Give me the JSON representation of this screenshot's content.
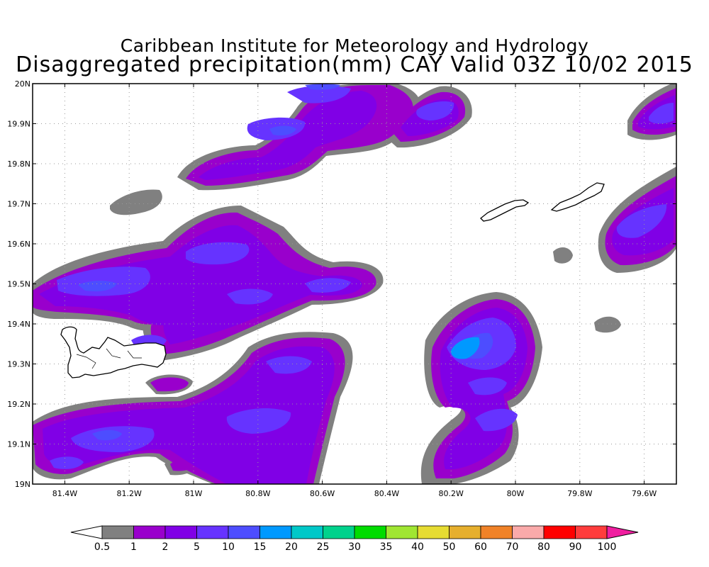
{
  "title": {
    "line1": "Caribbean Institute for Meteorology and Hydrology",
    "line2": "Disaggregated precipitation(mm) CAY Valid 03Z 10/02 2015"
  },
  "map": {
    "lon_range": [
      -81.5,
      -79.5
    ],
    "lat_range": [
      19.0,
      20.0
    ],
    "x_ticks": [
      {
        "value": -81.4,
        "label": "81.4W"
      },
      {
        "value": -81.2,
        "label": "81.2W"
      },
      {
        "value": -81.0,
        "label": "81W"
      },
      {
        "value": -80.8,
        "label": "80.8W"
      },
      {
        "value": -80.6,
        "label": "80.6W"
      },
      {
        "value": -80.4,
        "label": "80.4W"
      },
      {
        "value": -80.2,
        "label": "80.2W"
      },
      {
        "value": -80.0,
        "label": "80W"
      },
      {
        "value": -79.8,
        "label": "79.8W"
      },
      {
        "value": -79.6,
        "label": "79.6W"
      }
    ],
    "y_ticks": [
      {
        "value": 19.0,
        "label": "19N"
      },
      {
        "value": 19.1,
        "label": "19.1N"
      },
      {
        "value": 19.2,
        "label": "19.2N"
      },
      {
        "value": 19.3,
        "label": "19.3N"
      },
      {
        "value": 19.4,
        "label": "19.4N"
      },
      {
        "value": 19.5,
        "label": "19.5N"
      },
      {
        "value": 19.6,
        "label": "19.6N"
      },
      {
        "value": 19.7,
        "label": "19.7N"
      },
      {
        "value": 19.8,
        "label": "19.8N"
      },
      {
        "value": 19.9,
        "label": "19.9N"
      },
      {
        "value": 20.0,
        "label": "20N"
      }
    ],
    "grid": true
  },
  "colorbar": {
    "labels": [
      "0.5",
      "1",
      "2",
      "5",
      "10",
      "15",
      "20",
      "25",
      "30",
      "35",
      "40",
      "50",
      "60",
      "70",
      "80",
      "90",
      "100"
    ],
    "colors": [
      "#808080",
      "#9900cc",
      "#8000e6",
      "#6633ff",
      "#4d4dff",
      "#0099ff",
      "#00c8c8",
      "#00d28c",
      "#00dc00",
      "#a0e632",
      "#e6dc32",
      "#e6af2d",
      "#f08228",
      "#faaaaa",
      "#ff0000",
      "#ff3c3c",
      "#f01ea0"
    ],
    "under_color": "#ffffff",
    "over_color": "#f01ea0"
  }
}
